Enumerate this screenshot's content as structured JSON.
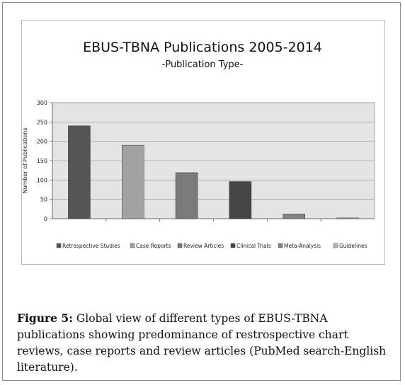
{
  "chart_data": {
    "type": "bar",
    "title": "EBUS-TBNA Publications 2005-2014",
    "subtitle": "-Publication Type-",
    "xlabel": "",
    "ylabel": "Number of Publications",
    "ylim": [
      0,
      300
    ],
    "yticks": [
      0,
      50,
      100,
      150,
      200,
      250,
      300
    ],
    "grid": true,
    "legend_position": "bottom",
    "categories": [
      "Retrospective Studies",
      "Case Reports",
      "Review Articles",
      "Clinical Trials",
      "Meta-Analysis",
      "Guidelines"
    ],
    "values": [
      240,
      190,
      119,
      96,
      12,
      2
    ],
    "colors": [
      "#555555",
      "#a3a3a3",
      "#7a7a7a",
      "#454545",
      "#838383",
      "#b4b4b4"
    ],
    "plot_background": "#e4e4e4"
  },
  "caption": {
    "label": "Figure 5:",
    "text": " Global view of different types of EBUS-TBNA publications showing predominance of restrospective chart reviews, case reports and review articles (PubMed search-English literature)."
  }
}
